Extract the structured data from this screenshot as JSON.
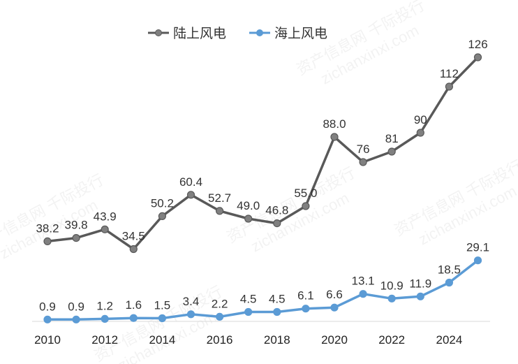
{
  "chart_data": {
    "type": "line",
    "title": "",
    "xlabel": "",
    "ylabel": "",
    "x": [
      2010,
      2011,
      2012,
      2013,
      2014,
      2015,
      2016,
      2017,
      2018,
      2019,
      2020,
      2021,
      2022,
      2023,
      2024,
      2025
    ],
    "x_tick_labels": [
      "2010",
      "2012",
      "2014",
      "2016",
      "2018",
      "2020",
      "2022",
      "2024"
    ],
    "ylim": [
      0,
      140
    ],
    "grid": false,
    "legend_position": "top-center",
    "series": [
      {
        "name": "陆上风电",
        "color": "#595959",
        "marker_color": "#808080",
        "values": [
          38.2,
          39.8,
          43.9,
          34.5,
          50.2,
          60.4,
          52.7,
          49.0,
          46.8,
          55.0,
          88.0,
          76,
          81,
          90,
          112,
          126
        ],
        "labels": [
          "38.2",
          "39.8",
          "43.9",
          "34.5",
          "50.2",
          "60.4",
          "52.7",
          "49.0",
          "46.8",
          "55.0",
          "88.0",
          "76",
          "81",
          "90",
          "112",
          "126"
        ]
      },
      {
        "name": "海上风电",
        "color": "#5b9bd5",
        "marker_color": "#5b9bd5",
        "values": [
          0.9,
          0.9,
          1.2,
          1.6,
          1.5,
          3.4,
          2.2,
          4.5,
          4.5,
          6.1,
          6.6,
          13.1,
          10.9,
          11.9,
          18.5,
          29.1
        ],
        "labels": [
          "0.9",
          "0.9",
          "1.2",
          "1.6",
          "1.5",
          "3.4",
          "2.2",
          "4.5",
          "4.5",
          "6.1",
          "6.6",
          "13.1",
          "10.9",
          "11.9",
          "18.5",
          "29.1"
        ]
      }
    ],
    "watermark": [
      "资产信息网 千际投行",
      "zichanxinxi.com"
    ]
  }
}
